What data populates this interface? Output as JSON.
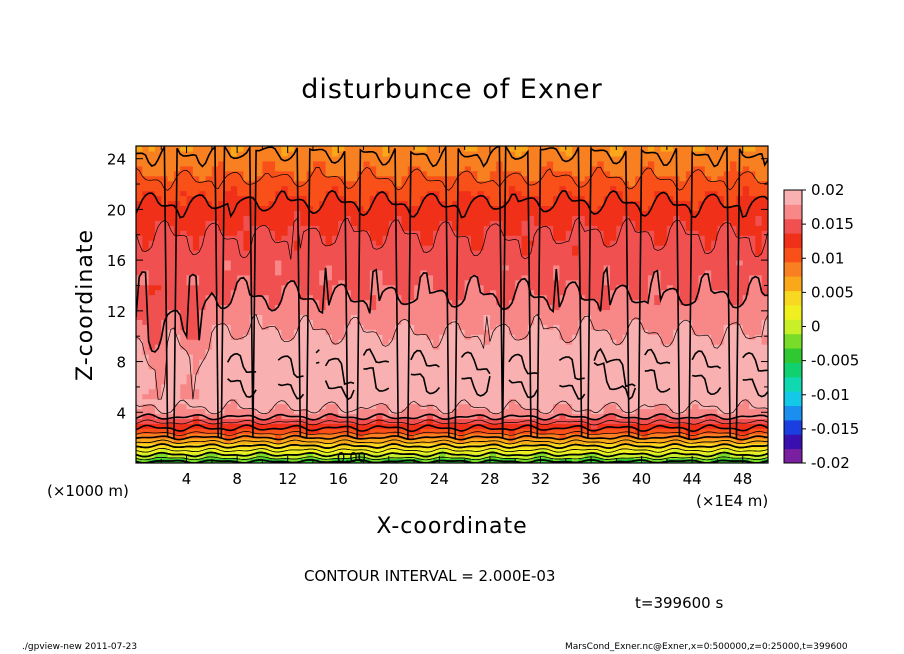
{
  "chart_data": {
    "type": "heatmap",
    "title": "disturbunce of Exner",
    "xlabel": "X-coordinate",
    "ylabel": "Z-coordinate",
    "x_unit_left": "(×1000 m)",
    "x_unit_right": "(×1E4 m)",
    "xticks": [
      "4",
      "8",
      "12",
      "16",
      "20",
      "24",
      "28",
      "32",
      "36",
      "40",
      "44",
      "48"
    ],
    "yticks": [
      "4",
      "8",
      "12",
      "16",
      "20",
      "24"
    ],
    "xlim": [
      0,
      50
    ],
    "ylim": [
      0,
      25
    ],
    "colorbar": {
      "labels": [
        "0.02",
        "0.015",
        "0.01",
        "0.005",
        "0",
        "-0.005",
        "-0.01",
        "-0.015",
        "-0.02"
      ],
      "range": [
        -0.02,
        0.02
      ],
      "colors": [
        "#7a1fa0",
        "#3a0fb0",
        "#1a3ee0",
        "#1a8ff0",
        "#14c8e8",
        "#10d8b0",
        "#10d070",
        "#30c830",
        "#78dc28",
        "#c8f028",
        "#f0f020",
        "#f8d820",
        "#f8a818",
        "#f88020",
        "#f85018",
        "#f03018",
        "#f05050",
        "#f88888",
        "#f8b0b0"
      ]
    },
    "profile": {
      "z": [
        0,
        0.5,
        1,
        1.5,
        2,
        2.5,
        3,
        3.5,
        4,
        5,
        6,
        7,
        8,
        9,
        10,
        11,
        12,
        13,
        14,
        16,
        18,
        20,
        22,
        23,
        24,
        25
      ],
      "values": [
        -0.005,
        -0.001,
        0.002,
        0.005,
        0.008,
        0.011,
        0.013,
        0.0155,
        0.0175,
        0.019,
        0.0198,
        0.02,
        0.0198,
        0.019,
        0.0182,
        0.0175,
        0.0168,
        0.016,
        0.0155,
        0.0148,
        0.014,
        0.0125,
        0.0105,
        0.0093,
        0.0085,
        0.0075
      ]
    },
    "contour_interval": 0.002,
    "zero_label": "0.00"
  },
  "annotations": {
    "contour_interval_text": "CONTOUR INTERVAL = 2.000E-03",
    "time_text": "t=399600 s",
    "footer_left": "./gpview-new  2011-07-23",
    "footer_right": "MarsCond_Exner.nc@Exner,x=0:500000,z=0:25000,t=399600"
  }
}
